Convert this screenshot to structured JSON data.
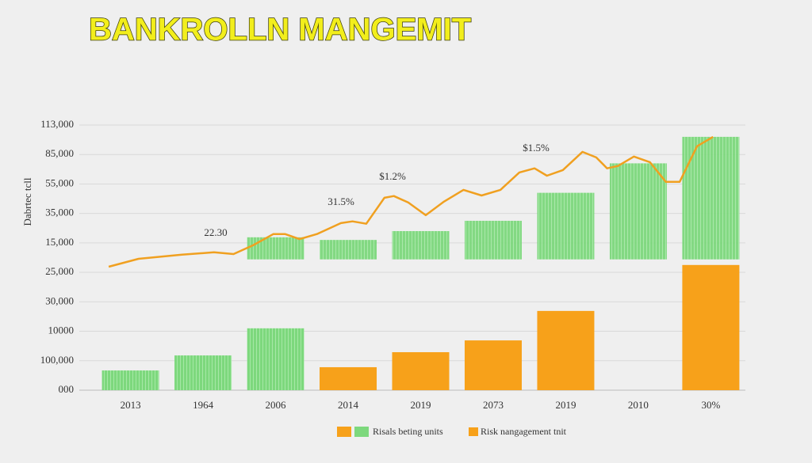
{
  "chart_data": {
    "type": "bar",
    "title": "BANKROLLN MANGEMIT",
    "y_label": "Dabrtec tcll",
    "categories": [
      "2013",
      "1964",
      "2006",
      "2014",
      "2019",
      "2073",
      "2019",
      "2010",
      "30%"
    ],
    "ylim": [
      0,
      9
    ],
    "yticks": [
      {
        "value": 0,
        "label": "000"
      },
      {
        "value": 1,
        "label": "100,000"
      },
      {
        "value": 2,
        "label": "10000"
      },
      {
        "value": 3,
        "label": "30,000"
      },
      {
        "value": 4,
        "label": "25,000"
      },
      {
        "value": 5,
        "label": "15,000"
      },
      {
        "value": 6,
        "label": "35,000"
      },
      {
        "value": 7,
        "label": "55,000"
      },
      {
        "value": 8,
        "label": "85,000"
      },
      {
        "value": 9,
        "label": "113,000"
      }
    ],
    "xlim": [
      -0.4,
      8.4
    ],
    "grid": true,
    "series": [
      {
        "name": "Risals beting units",
        "color": "#7dd87d",
        "values": [
          0.67,
          1.18,
          2.1,
          null,
          null,
          null,
          null,
          null,
          null
        ]
      },
      {
        "name": "Risk nangagement tnit",
        "color": "#f7a11a",
        "values": [
          null,
          null,
          null,
          0.78,
          1.29,
          1.69,
          2.69,
          null,
          4.25
        ]
      }
    ],
    "top_bars": {
      "color": "#7dd87d",
      "base": 4.44,
      "values": [
        null,
        null,
        5.19,
        5.1,
        5.4,
        5.75,
        6.7,
        7.7,
        8.6
      ]
    },
    "line": {
      "color": "#f0a020",
      "x": [
        -0.3,
        0.11,
        0.71,
        1.15,
        1.42,
        1.69,
        1.97,
        2.13,
        2.33,
        2.57,
        2.9,
        3.06,
        3.25,
        3.5,
        3.63,
        3.83,
        4.07,
        4.32,
        4.59,
        4.84,
        5.1,
        5.36,
        5.57,
        5.74,
        5.96,
        6.23,
        6.42,
        6.57,
        6.72,
        6.94,
        7.16,
        7.38,
        7.57,
        7.81,
        8.03
      ],
      "values": [
        4.19,
        4.46,
        4.6,
        4.68,
        4.62,
        4.92,
        5.3,
        5.3,
        5.13,
        5.3,
        5.67,
        5.73,
        5.65,
        6.53,
        6.59,
        6.37,
        5.94,
        6.4,
        6.8,
        6.61,
        6.8,
        7.39,
        7.53,
        7.28,
        7.47,
        8.09,
        7.9,
        7.53,
        7.61,
        7.93,
        7.74,
        7.07,
        7.07,
        8.28,
        8.6
      ]
    },
    "annotations": [
      "22.30",
      "31.5%",
      "$1.2%",
      "$1.5%"
    ]
  }
}
